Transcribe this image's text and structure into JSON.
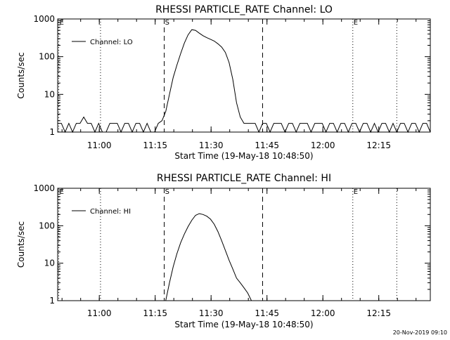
{
  "footer_timestamp": "20-Nov-2019 09:10",
  "chart_data": [
    {
      "type": "line",
      "title": "RHESSI PARTICLE_RATE Channel: LO",
      "xlabel": "Start Time (19-May-18 10:48:50)",
      "ylabel": "Counts/sec",
      "yscale": "log",
      "ylim": [
        1,
        1000
      ],
      "xlim_minutes_after_start": [
        0,
        100
      ],
      "x_tick_labels": [
        "11:00",
        "11:15",
        "11:30",
        "11:45",
        "12:00",
        "12:15"
      ],
      "x_tick_minutes": [
        11.17,
        26.17,
        41.17,
        56.17,
        71.17,
        86.17
      ],
      "y_tick_labels": [
        "1",
        "10",
        "100",
        "1000"
      ],
      "y_tick_values": [
        1,
        10,
        100,
        1000
      ],
      "legend": {
        "entry": "Channel: LO",
        "placement": "top-left"
      },
      "markers": [
        {
          "label": "E",
          "minute": 0.3,
          "style": "dotted"
        },
        {
          "label": "S",
          "minute": 28.6,
          "style": "dashed"
        },
        {
          "label": "",
          "minute": 55.0,
          "style": "dashed"
        },
        {
          "label": "E",
          "minute": 79.2,
          "style": "dotted"
        }
      ],
      "vertical_lines": [
        {
          "minute": 11.5,
          "style": "dotted"
        },
        {
          "minute": 91.0,
          "style": "dotted"
        }
      ],
      "series": [
        {
          "name": "Channel: LO",
          "x": [
            0,
            1,
            2,
            3,
            4,
            5,
            6,
            7,
            8,
            9,
            10,
            11,
            12,
            13,
            14,
            15,
            16,
            17,
            18,
            19,
            20,
            21,
            22,
            23,
            24,
            25,
            26,
            27,
            28,
            29,
            30,
            31,
            32,
            33,
            34,
            35,
            36,
            37,
            38,
            39,
            40,
            41,
            42,
            43,
            44,
            45,
            46,
            47,
            48,
            49,
            50,
            51,
            52,
            53,
            54,
            55,
            56,
            57,
            58,
            59,
            60,
            61,
            62,
            63,
            64,
            65,
            66,
            67,
            68,
            69,
            70,
            71,
            72,
            73,
            74,
            75,
            76,
            77,
            78,
            79,
            80,
            81,
            82,
            83,
            84,
            85,
            86,
            87,
            88,
            89,
            90,
            91,
            92,
            93,
            94,
            95,
            96,
            97,
            98,
            99,
            100
          ],
          "y": [
            1.7,
            1.7,
            1.0,
            1.7,
            1.0,
            1.7,
            1.7,
            2.5,
            1.7,
            1.7,
            1.0,
            1.7,
            1.0,
            1.0,
            1.7,
            1.7,
            1.7,
            1.0,
            1.7,
            1.7,
            1.0,
            1.7,
            1.7,
            1.0,
            1.7,
            1.0,
            1.0,
            1.7,
            2.0,
            3.5,
            10,
            28,
            60,
            120,
            230,
            380,
            520,
            500,
            420,
            360,
            320,
            290,
            260,
            220,
            180,
            130,
            70,
            25,
            6,
            2.5,
            1.7,
            1.7,
            1.7,
            1.7,
            1.0,
            1.7,
            1.7,
            1.0,
            1.7,
            1.7,
            1.7,
            1.0,
            1.7,
            1.7,
            1.0,
            1.7,
            1.7,
            1.7,
            1.0,
            1.7,
            1.7,
            1.7,
            1.0,
            1.7,
            1.7,
            1.0,
            1.7,
            1.7,
            1.0,
            1.7,
            1.7,
            1.0,
            1.7,
            1.7,
            1.0,
            1.7,
            1.0,
            1.7,
            1.7,
            1.0,
            1.7,
            1.0,
            1.7,
            1.7,
            1.0,
            1.7,
            1.7,
            1.0,
            1.7,
            1.7,
            1.0
          ]
        }
      ]
    },
    {
      "type": "line",
      "title": "RHESSI PARTICLE_RATE Channel: HI",
      "xlabel": "Start Time (19-May-18 10:48:50)",
      "ylabel": "Counts/sec",
      "yscale": "log",
      "ylim": [
        1,
        1000
      ],
      "xlim_minutes_after_start": [
        0,
        100
      ],
      "x_tick_labels": [
        "11:00",
        "11:15",
        "11:30",
        "11:45",
        "12:00",
        "12:15"
      ],
      "x_tick_minutes": [
        11.17,
        26.17,
        41.17,
        56.17,
        71.17,
        86.17
      ],
      "y_tick_labels": [
        "1",
        "10",
        "100",
        "1000"
      ],
      "y_tick_values": [
        1,
        10,
        100,
        1000
      ],
      "legend": {
        "entry": "Channel: HI",
        "placement": "top-left"
      },
      "markers": [
        {
          "label": "E",
          "minute": 0.3,
          "style": "dotted"
        },
        {
          "label": "S",
          "minute": 28.6,
          "style": "dashed"
        },
        {
          "label": "",
          "minute": 55.0,
          "style": "dashed"
        },
        {
          "label": "E",
          "minute": 79.2,
          "style": "dotted"
        }
      ],
      "vertical_lines": [
        {
          "minute": 11.5,
          "style": "dotted"
        },
        {
          "minute": 91.0,
          "style": "dotted"
        }
      ],
      "series": [
        {
          "name": "Channel: HI",
          "x": [
            29.0,
            30.0,
            31.0,
            32.0,
            33.0,
            34.0,
            35.0,
            36.0,
            37.0,
            38.0,
            39.0,
            40.0,
            41.0,
            42.0,
            43.0,
            44.0,
            45.0,
            46.0,
            47.0,
            48.0,
            49.0,
            50.0,
            51.0,
            52.0
          ],
          "y": [
            1.0,
            3.0,
            8.0,
            18,
            35,
            60,
            95,
            140,
            190,
            210,
            200,
            180,
            150,
            110,
            70,
            40,
            22,
            12,
            7,
            4,
            3,
            2.2,
            1.6,
            1.0
          ]
        }
      ]
    }
  ]
}
